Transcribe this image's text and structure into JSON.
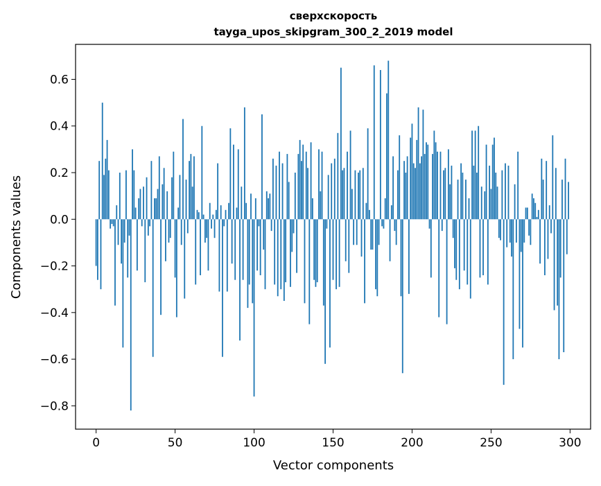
{
  "chart_data": {
    "type": "bar",
    "title": "сверхскорость",
    "subtitle": "tayga_upos_skipgram_300_2_2019 model",
    "xlabel": "Vector components",
    "ylabel": "Components values",
    "xlim": [
      -13,
      313
    ],
    "ylim": [
      -0.9,
      0.75
    ],
    "x_ticks": [
      0,
      50,
      100,
      150,
      200,
      250,
      300
    ],
    "x_tick_labels": [
      "0",
      "50",
      "100",
      "150",
      "200",
      "250",
      "300"
    ],
    "y_ticks": [
      -0.8,
      -0.6,
      -0.4,
      -0.2,
      0.0,
      0.2,
      0.4,
      0.6
    ],
    "y_tick_labels": [
      "−0.8",
      "−0.6",
      "−0.4",
      "−0.2",
      "0.0",
      "0.2",
      "0.4",
      "0.6"
    ],
    "grid": false,
    "bar_color": "#1f77b4",
    "values": [
      -0.2,
      -0.26,
      0.25,
      -0.3,
      0.5,
      0.19,
      0.26,
      0.34,
      0.21,
      -0.04,
      -0.02,
      -0.03,
      -0.37,
      0.06,
      -0.11,
      0.2,
      -0.19,
      -0.55,
      -0.1,
      0.21,
      -0.25,
      -0.07,
      -0.82,
      0.3,
      0.21,
      0.05,
      -0.22,
      0.09,
      0.13,
      -0.03,
      0.14,
      -0.27,
      0.18,
      -0.07,
      -0.03,
      0.25,
      -0.59,
      0.09,
      0.09,
      0.13,
      0.27,
      -0.41,
      0.15,
      0.22,
      -0.18,
      0.12,
      -0.1,
      -0.08,
      0.18,
      0.29,
      -0.25,
      -0.42,
      0.05,
      0.19,
      -0.11,
      0.43,
      -0.34,
      0.17,
      -0.06,
      0.25,
      0.28,
      0.14,
      0.27,
      -0.28,
      0.04,
      0.03,
      -0.24,
      0.4,
      0.02,
      -0.1,
      -0.08,
      -0.22,
      0.07,
      -0.04,
      0.02,
      -0.08,
      0.04,
      0.24,
      -0.31,
      0.06,
      -0.59,
      -0.03,
      0.04,
      -0.31,
      0.07,
      0.39,
      -0.19,
      0.32,
      -0.26,
      0.05,
      0.3,
      -0.52,
      0.14,
      -0.26,
      0.48,
      0.07,
      -0.38,
      -0.28,
      0.11,
      -0.36,
      -0.76,
      0.09,
      -0.22,
      -0.03,
      -0.24,
      0.45,
      -0.13,
      -0.3,
      0.12,
      0.09,
      0.11,
      -0.05,
      0.26,
      -0.28,
      0.23,
      -0.33,
      0.29,
      -0.3,
      0.24,
      -0.35,
      -0.27,
      0.28,
      0.16,
      -0.29,
      -0.14,
      -0.06,
      0.2,
      -0.23,
      0.28,
      0.34,
      0.25,
      0.32,
      -0.36,
      0.29,
      0.22,
      -0.45,
      0.33,
      0.09,
      -0.26,
      -0.29,
      -0.27,
      0.3,
      0.12,
      0.29,
      -0.37,
      -0.62,
      -0.04,
      0.19,
      -0.55,
      0.24,
      -0.26,
      0.26,
      -0.3,
      0.37,
      -0.29,
      0.65,
      0.21,
      0.22,
      -0.18,
      0.29,
      -0.23,
      0.38,
      0.13,
      -0.11,
      0.21,
      -0.11,
      0.2,
      0.21,
      -0.16,
      0.22,
      -0.36,
      0.07,
      0.39,
      0.04,
      -0.13,
      -0.13,
      0.66,
      -0.3,
      -0.33,
      -0.11,
      0.64,
      -0.03,
      -0.04,
      0.09,
      0.54,
      0.68,
      -0.18,
      0.06,
      0.27,
      -0.05,
      -0.11,
      0.21,
      0.36,
      -0.33,
      -0.66,
      0.25,
      0.2,
      0.27,
      -0.32,
      0.35,
      0.41,
      0.24,
      0.22,
      0.34,
      0.48,
      0.24,
      0.27,
      0.47,
      0.28,
      0.33,
      0.32,
      -0.04,
      -0.25,
      0.28,
      0.38,
      0.33,
      0.29,
      -0.42,
      0.29,
      -0.05,
      0.21,
      0.22,
      -0.45,
      0.3,
      0.15,
      0.23,
      -0.08,
      -0.21,
      -0.26,
      0.17,
      -0.3,
      0.24,
      0.2,
      -0.22,
      0.17,
      -0.28,
      0.09,
      -0.34,
      0.38,
      0.23,
      0.38,
      0.2,
      0.4,
      -0.25,
      0.14,
      -0.24,
      0.12,
      0.32,
      -0.28,
      0.23,
      0.13,
      0.32,
      0.35,
      0.2,
      0.14,
      -0.08,
      -0.09,
      0.21,
      -0.71,
      0.24,
      -0.12,
      0.23,
      -0.1,
      -0.16,
      -0.6,
      0.15,
      -0.1,
      0.29,
      -0.47,
      -0.14,
      -0.55,
      -0.1,
      0.05,
      0.05,
      -0.07,
      -0.11,
      0.11,
      0.09,
      0.07,
      0.01,
      0.04,
      -0.19,
      0.26,
      0.17,
      -0.24,
      0.25,
      -0.17,
      0.06,
      -0.06,
      0.36,
      -0.39,
      0.22,
      -0.37,
      -0.6,
      -0.25,
      0.17,
      -0.57,
      0.26,
      -0.15,
      0.16
    ]
  }
}
